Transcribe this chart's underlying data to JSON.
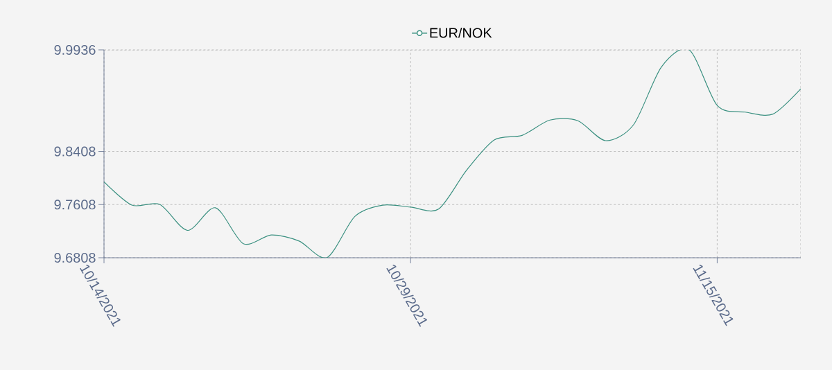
{
  "chart_data": {
    "type": "line",
    "categories": [
      "10/14/2021",
      null,
      null,
      null,
      null,
      null,
      null,
      null,
      null,
      null,
      null,
      "10/29/2021",
      null,
      null,
      null,
      null,
      null,
      null,
      null,
      null,
      null,
      null,
      "11/15/2021",
      null,
      null,
      null
    ],
    "series": [
      {
        "name": "EUR/NOK",
        "color": "#3a9080",
        "values": [
          9.795,
          9.76,
          9.761,
          9.722,
          9.756,
          9.702,
          9.715,
          9.706,
          9.681,
          9.743,
          9.76,
          9.757,
          9.754,
          9.812,
          9.858,
          9.865,
          9.888,
          9.887,
          9.857,
          9.881,
          9.968,
          9.9936,
          9.91,
          9.9,
          9.897,
          9.935
        ]
      }
    ],
    "ylim": [
      9.6808,
      9.9936
    ],
    "yticks": [
      9.6808,
      9.7608,
      9.8408,
      9.9936
    ],
    "grid": true,
    "legend": "top",
    "marker": "none",
    "line_style": "solid"
  }
}
